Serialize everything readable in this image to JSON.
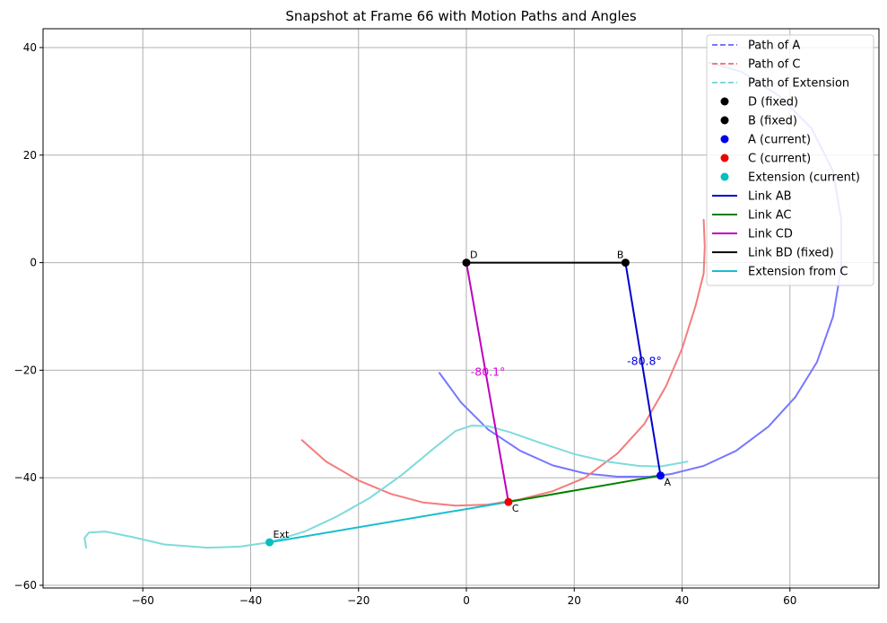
{
  "chart_data": {
    "type": "line",
    "title": "Snapshot at Frame 66 with Motion Paths and Angles",
    "xlabel": "",
    "ylabel": "",
    "xlim": [
      -78.5,
      76.5
    ],
    "ylim": [
      -60.5,
      43.5
    ],
    "xticks": [
      -60,
      -40,
      -20,
      0,
      20,
      40,
      60
    ],
    "yticks": [
      40,
      20,
      0,
      -20,
      -40,
      -60
    ],
    "xtick_labels": [
      "−60",
      "−40",
      "−20",
      "0",
      "20",
      "40",
      "60"
    ],
    "ytick_labels": [
      "40",
      "20",
      "0",
      "−20",
      "−40",
      "−60"
    ],
    "grid": true,
    "legend_position": "upper right",
    "paths": [
      {
        "name": "Path of A",
        "color": "#7777ff",
        "style": "dashed",
        "points": [
          [
            -5,
            -20.5
          ],
          [
            -1,
            -26
          ],
          [
            4,
            -31
          ],
          [
            10,
            -35
          ],
          [
            16,
            -37.7
          ],
          [
            22,
            -39.2
          ],
          [
            28,
            -39.8
          ],
          [
            34,
            -39.8
          ],
          [
            38,
            -39.3
          ],
          [
            44,
            -37.8
          ],
          [
            50,
            -35
          ],
          [
            56,
            -30.5
          ],
          [
            61,
            -25
          ],
          [
            65,
            -18.5
          ],
          [
            68,
            -10
          ],
          [
            69.5,
            -1
          ],
          [
            69.5,
            8
          ],
          [
            68,
            17
          ],
          [
            64,
            25
          ],
          [
            58,
            31
          ],
          [
            51,
            35.5
          ],
          [
            45,
            37.2
          ]
        ]
      },
      {
        "name": "Path of C",
        "color": "#f47c7c",
        "style": "dashed",
        "points": [
          [
            -30.5,
            -33
          ],
          [
            -26,
            -37
          ],
          [
            -20,
            -40.5
          ],
          [
            -14,
            -43
          ],
          [
            -8,
            -44.6
          ],
          [
            -2,
            -45.2
          ],
          [
            4,
            -45
          ],
          [
            10,
            -44
          ],
          [
            16,
            -42.5
          ],
          [
            22,
            -40
          ],
          [
            28,
            -35.5
          ],
          [
            33,
            -30
          ],
          [
            37,
            -23
          ],
          [
            40,
            -16
          ],
          [
            42.5,
            -8
          ],
          [
            44,
            -2
          ],
          [
            44.2,
            3
          ],
          [
            44,
            8
          ]
        ]
      },
      {
        "name": "Path of Extension",
        "color": "#7fdbdb",
        "style": "dashed",
        "points": [
          [
            -70.5,
            -53
          ],
          [
            -70.8,
            -51.2
          ],
          [
            -70,
            -50.2
          ],
          [
            -67,
            -50
          ],
          [
            -62,
            -51
          ],
          [
            -56,
            -52.4
          ],
          [
            -48,
            -53
          ],
          [
            -42,
            -52.8
          ],
          [
            -36.5,
            -52
          ],
          [
            -30,
            -50
          ],
          [
            -24,
            -47.2
          ],
          [
            -18,
            -43.8
          ],
          [
            -12,
            -39.5
          ],
          [
            -6,
            -34.5
          ],
          [
            -2,
            -31.3
          ],
          [
            1,
            -30.3
          ],
          [
            4,
            -30.4
          ],
          [
            8,
            -31.5
          ],
          [
            14,
            -33.6
          ],
          [
            20,
            -35.6
          ],
          [
            26,
            -37
          ],
          [
            32,
            -37.8
          ],
          [
            36,
            -37.9
          ],
          [
            41,
            -37
          ]
        ]
      }
    ],
    "links": [
      {
        "name": "Link AB",
        "color": "#0000cc",
        "from": [
          29.5,
          0
        ],
        "to": [
          36,
          -39.6
        ]
      },
      {
        "name": "Link AC",
        "color": "#008000",
        "from": [
          36,
          -39.6
        ],
        "to": [
          7.8,
          -44.5
        ]
      },
      {
        "name": "Link CD",
        "color": "#bf00bf",
        "from": [
          0,
          0
        ],
        "to": [
          7.8,
          -44.5
        ]
      },
      {
        "name": "Link BD (fixed)",
        "color": "#000000",
        "from": [
          0,
          0
        ],
        "to": [
          29.5,
          0
        ]
      },
      {
        "name": "Extension from C",
        "color": "#17becf",
        "from": [
          7.8,
          -44.5
        ],
        "to": [
          -36.5,
          -52
        ]
      }
    ],
    "points": [
      {
        "name": "D (fixed)",
        "label": "D",
        "x": 0,
        "y": 0,
        "color": "#000000",
        "label_pos": "top-right"
      },
      {
        "name": "B (fixed)",
        "label": "B",
        "x": 29.5,
        "y": 0,
        "color": "#000000",
        "label_pos": "top-left"
      },
      {
        "name": "A (current)",
        "label": "A",
        "x": 36,
        "y": -39.6,
        "color": "#0000ee",
        "label_pos": "bottom-right"
      },
      {
        "name": "C (current)",
        "label": "C",
        "x": 7.8,
        "y": -44.5,
        "color": "#ee0000",
        "label_pos": "bottom-right"
      },
      {
        "name": "Extension (current)",
        "label": "Ext",
        "x": -36.5,
        "y": -52,
        "color": "#00bfbf",
        "label_pos": "top-right"
      }
    ],
    "annotations": [
      {
        "text": "-80.1°",
        "x": 4,
        "y": -21,
        "color": "#e000e0"
      },
      {
        "text": "-80.8°",
        "x": 33,
        "y": -19,
        "color": "#0000ee"
      }
    ],
    "legend": [
      {
        "label": "Path of A",
        "kind": "dashed",
        "color": "#7777ff"
      },
      {
        "label": "Path of C",
        "kind": "dashed",
        "color": "#f47c7c"
      },
      {
        "label": "Path of Extension",
        "kind": "dashed",
        "color": "#7fdbdb"
      },
      {
        "label": "D (fixed)",
        "kind": "marker",
        "color": "#000000"
      },
      {
        "label": "B (fixed)",
        "kind": "marker",
        "color": "#000000"
      },
      {
        "label": "A (current)",
        "kind": "marker",
        "color": "#0000ee"
      },
      {
        "label": "C (current)",
        "kind": "marker",
        "color": "#ee0000"
      },
      {
        "label": "Extension (current)",
        "kind": "marker",
        "color": "#00bfbf"
      },
      {
        "label": "Link AB",
        "kind": "line",
        "color": "#0000cc"
      },
      {
        "label": "Link AC",
        "kind": "line",
        "color": "#008000"
      },
      {
        "label": "Link CD",
        "kind": "line",
        "color": "#bf00bf"
      },
      {
        "label": "Link BD (fixed)",
        "kind": "line",
        "color": "#000000"
      },
      {
        "label": "Extension from C",
        "kind": "line",
        "color": "#17becf"
      }
    ]
  }
}
